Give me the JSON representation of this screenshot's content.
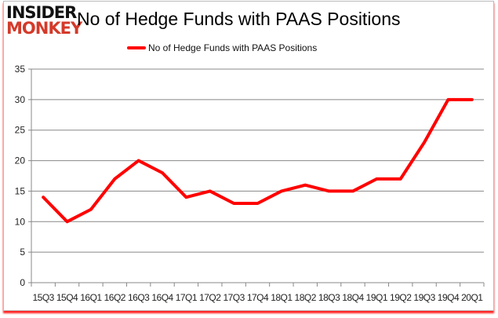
{
  "logo": {
    "line1": "INSIDER",
    "line2": "MONKEY"
  },
  "chart_data": {
    "type": "line",
    "title": "No of Hedge Funds with PAAS Positions",
    "xlabel": "",
    "ylabel": "",
    "categories": [
      "15Q3",
      "15Q4",
      "16Q1",
      "16Q2",
      "16Q3",
      "16Q4",
      "17Q1",
      "17Q2",
      "17Q3",
      "17Q4",
      "18Q1",
      "18Q2",
      "18Q3",
      "18Q4",
      "19Q1",
      "19Q2",
      "19Q3",
      "19Q4",
      "20Q1"
    ],
    "series": [
      {
        "name": "No of Hedge Funds with PAAS Positions",
        "color": "#ff0000",
        "values": [
          14,
          10,
          12,
          17,
          20,
          18,
          14,
          15,
          13,
          13,
          15,
          16,
          15,
          15,
          17,
          17,
          23,
          30,
          30
        ]
      }
    ],
    "ylim": [
      0,
      35
    ],
    "yticks": [
      0,
      5,
      10,
      15,
      20,
      25,
      30,
      35
    ],
    "grid": true,
    "legend": "top-center"
  }
}
